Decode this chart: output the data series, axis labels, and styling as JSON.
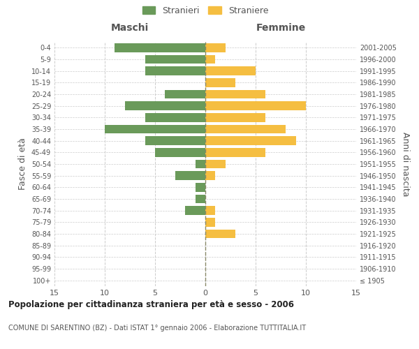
{
  "age_groups": [
    "100+",
    "95-99",
    "90-94",
    "85-89",
    "80-84",
    "75-79",
    "70-74",
    "65-69",
    "60-64",
    "55-59",
    "50-54",
    "45-49",
    "40-44",
    "35-39",
    "30-34",
    "25-29",
    "20-24",
    "15-19",
    "10-14",
    "5-9",
    "0-4"
  ],
  "birth_years": [
    "≤ 1905",
    "1906-1910",
    "1911-1915",
    "1916-1920",
    "1921-1925",
    "1926-1930",
    "1931-1935",
    "1936-1940",
    "1941-1945",
    "1946-1950",
    "1951-1955",
    "1956-1960",
    "1961-1965",
    "1966-1970",
    "1971-1975",
    "1976-1980",
    "1981-1985",
    "1986-1990",
    "1991-1995",
    "1996-2000",
    "2001-2005"
  ],
  "males": [
    0,
    0,
    0,
    0,
    0,
    0,
    2,
    1,
    1,
    3,
    1,
    5,
    6,
    10,
    6,
    8,
    4,
    0,
    6,
    6,
    9
  ],
  "females": [
    0,
    0,
    0,
    0,
    3,
    1,
    1,
    0,
    0,
    1,
    2,
    6,
    9,
    8,
    6,
    10,
    6,
    3,
    5,
    1,
    2
  ],
  "male_color": "#6a9a5a",
  "female_color": "#f5be41",
  "bar_height": 0.75,
  "xlim": 15,
  "title": "Popolazione per cittadinanza straniera per età e sesso - 2006",
  "subtitle": "COMUNE DI SARENTINO (BZ) - Dati ISTAT 1° gennaio 2006 - Elaborazione TUTTITALIA.IT",
  "ylabel_left": "Fasce di età",
  "ylabel_right": "Anni di nascita",
  "xlabel_left": "Maschi",
  "xlabel_right": "Femmine",
  "legend_male": "Stranieri",
  "legend_female": "Straniere",
  "bg_color": "#ffffff",
  "grid_color": "#cccccc",
  "text_color": "#555555",
  "axis_label_color": "#555555"
}
